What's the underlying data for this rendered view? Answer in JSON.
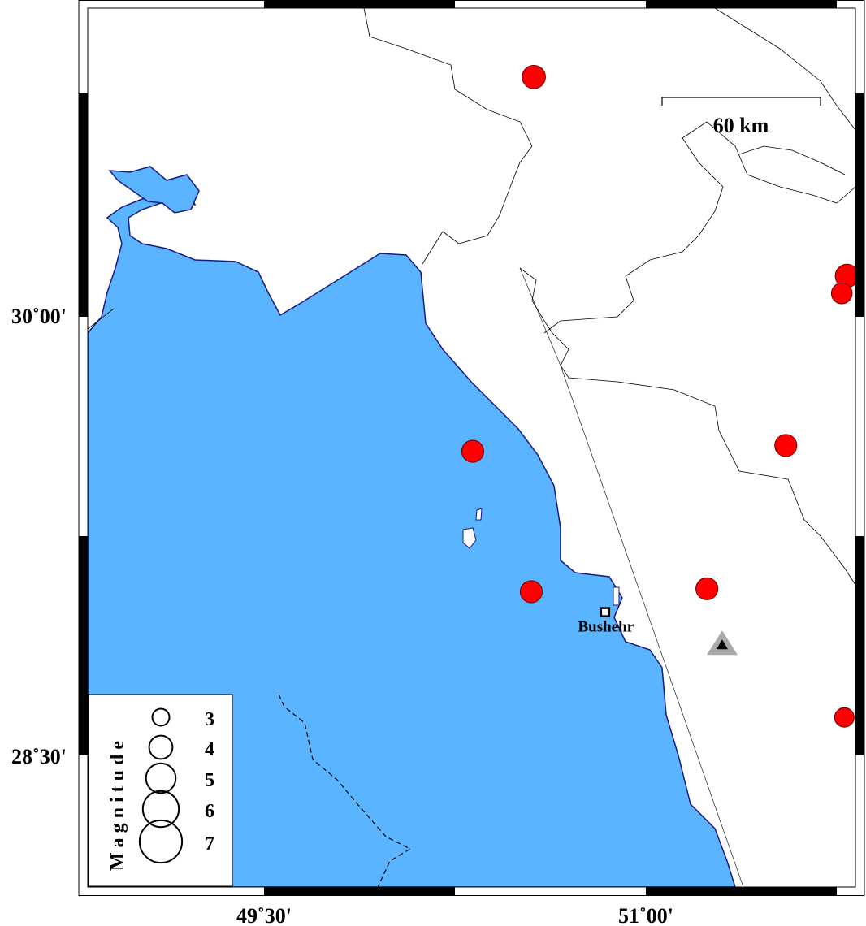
{
  "map": {
    "water_color": "#5ab4ff",
    "coast_color": "#1a1a80",
    "event_color": "#ff0000",
    "station_color": "#aaaaaa",
    "axis_labels": {
      "lat": [
        {
          "value": 30.0,
          "text": "30˚00'"
        },
        {
          "value": 28.5,
          "text": "28˚30'"
        }
      ],
      "lon": [
        {
          "value": 49.5,
          "text": "49˚30'"
        },
        {
          "value": 51.0,
          "text": "51˚00'"
        }
      ]
    },
    "scale_bar": {
      "label": "60 km"
    },
    "city": {
      "name": "Bushehr",
      "lon": 50.84,
      "lat": 28.99,
      "icon": "square-marker-icon"
    },
    "station": {
      "lon": 51.3,
      "lat": 28.88,
      "icon": "triangle-icon"
    },
    "events": [
      {
        "lon": 50.56,
        "lat": 30.82,
        "magnitude": 3.6
      },
      {
        "lon": 50.32,
        "lat": 29.54,
        "magnitude": 3.4
      },
      {
        "lon": 50.55,
        "lat": 29.06,
        "magnitude": 3.4
      },
      {
        "lon": 51.24,
        "lat": 29.07,
        "magnitude": 3.4
      },
      {
        "lon": 51.55,
        "lat": 29.56,
        "magnitude": 3.4
      },
      {
        "lon": 51.79,
        "lat": 30.14,
        "magnitude": 3.6
      },
      {
        "lon": 51.77,
        "lat": 30.08,
        "magnitude": 3.2
      },
      {
        "lon": 51.78,
        "lat": 28.63,
        "magnitude": 3.0
      }
    ],
    "legend": {
      "title": "Magnitude",
      "items": [
        {
          "label": "3"
        },
        {
          "label": "4"
        },
        {
          "label": "5"
        },
        {
          "label": "6"
        },
        {
          "label": "7"
        }
      ]
    }
  }
}
